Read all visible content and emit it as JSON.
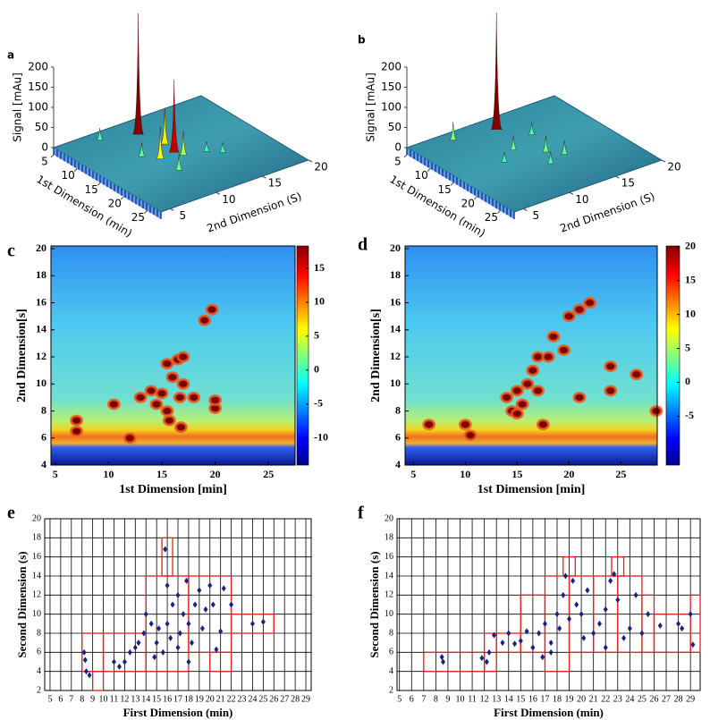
{
  "chart_data": [
    {
      "type": "surface3d",
      "panel": "a",
      "zlabel": "Signal [mAu]",
      "xlabel": "1st Dimension (min)",
      "ylabel": "2nd Dimension (S)",
      "xlim": [
        5,
        28
      ],
      "ylim": [
        4,
        20
      ],
      "zlim": [
        0,
        200
      ],
      "xticks": [
        5,
        10,
        15,
        20,
        25
      ],
      "yticks": [
        5,
        10,
        15,
        20
      ],
      "zticks": [
        0,
        50,
        100,
        150,
        200
      ],
      "x": [
        8.7,
        15.6,
        13,
        16,
        17,
        7,
        20,
        14,
        18,
        19.5
      ],
      "y": [
        11.3,
        11.7,
        12,
        10,
        12,
        8,
        10,
        9,
        14,
        15
      ],
      "z": [
        300,
        180,
        90,
        80,
        60,
        30,
        40,
        35,
        25,
        25
      ]
    },
    {
      "type": "surface3d",
      "panel": "b",
      "zlabel": "Signal [mAu]",
      "xlabel": "1st Dimension (min)",
      "ylabel": "2nd Dimension (S)",
      "xlim": [
        5,
        28
      ],
      "ylim": [
        4,
        20
      ],
      "zlim": [
        0,
        200
      ],
      "xticks": [
        5,
        10,
        15,
        20,
        25
      ],
      "yticks": [
        5,
        10,
        15,
        20
      ],
      "zticks": [
        0,
        50,
        100,
        150,
        200
      ],
      "x": [
        8,
        7,
        14,
        17,
        19,
        20,
        16,
        12
      ],
      "y": [
        12.2,
        8,
        11,
        13,
        14,
        12,
        9,
        14
      ],
      "z": [
        290,
        45,
        35,
        40,
        35,
        30,
        25,
        30
      ]
    },
    {
      "type": "heatmap",
      "panel": "c",
      "xlabel": "1st Dimension [min]",
      "ylabel": "2nd Dimension[s]",
      "xlim": [
        4.6,
        27.5
      ],
      "ylim": [
        4,
        20.2
      ],
      "xticks": [
        5,
        10,
        15,
        20,
        25
      ],
      "yticks": [
        4,
        6,
        8,
        10,
        12,
        14,
        16,
        18,
        20
      ],
      "colorbar_lim": [
        -14,
        18.3
      ],
      "colorbar_ticks": [
        -10,
        -5,
        0,
        5,
        10,
        15
      ],
      "x": [
        7,
        7,
        12,
        13,
        14,
        15,
        14.5,
        15.5,
        15.5,
        16,
        16.5,
        17,
        15.7,
        16.8,
        17,
        18,
        19.7,
        19,
        20,
        20,
        16.7,
        10.5
      ],
      "y": [
        6.5,
        7.3,
        6,
        9,
        9.5,
        9.3,
        8.5,
        8,
        11.5,
        10.5,
        11.8,
        12,
        7.3,
        6.8,
        10,
        9,
        15.5,
        14.7,
        8.2,
        8.8,
        9,
        8.5
      ]
    },
    {
      "type": "heatmap",
      "panel": "d",
      "xlabel": "1st Dimension [min]",
      "ylabel": "2nd Dimension[s]",
      "xlim": [
        4.2,
        28.5
      ],
      "ylim": [
        4,
        20.2
      ],
      "xticks": [
        5,
        10,
        15,
        20,
        25
      ],
      "yticks": [
        4,
        6,
        8,
        10,
        12,
        14,
        16,
        18,
        20
      ],
      "colorbar_lim": [
        -12.2,
        20.1
      ],
      "colorbar_ticks": [
        -5,
        0,
        5,
        10,
        15,
        20
      ],
      "x": [
        6.5,
        10.5,
        10,
        14,
        14.5,
        15,
        15.5,
        15,
        16,
        16.5,
        17,
        18,
        18.5,
        17.5,
        20,
        21,
        22,
        21,
        24,
        26.5,
        24,
        28.4,
        19.5,
        17
      ],
      "y": [
        7,
        6.2,
        7,
        9,
        8,
        9.5,
        8.5,
        7.8,
        10,
        11,
        12,
        12,
        13.5,
        7,
        15,
        15.5,
        16,
        9,
        11.3,
        10.7,
        9.5,
        8,
        12.5,
        9.5
      ]
    },
    {
      "type": "scatter",
      "panel": "e",
      "xlabel": "First Dimension (min)",
      "ylabel": "Second Dimension (s)",
      "xlim": [
        4.5,
        29.5
      ],
      "ylim": [
        2,
        20
      ],
      "grid": true,
      "xticks": [
        5,
        6,
        7,
        8,
        9,
        10,
        11,
        12,
        13,
        14,
        15,
        16,
        17,
        18,
        19,
        20,
        21,
        22,
        23,
        24,
        25,
        26,
        27,
        28,
        29
      ],
      "yticks": [
        2,
        4,
        6,
        8,
        10,
        12,
        14,
        16,
        18,
        20
      ],
      "boxes": [
        [
          8,
          10,
          4,
          8
        ],
        [
          9,
          10,
          2,
          4
        ],
        [
          10,
          14,
          4,
          8
        ],
        [
          14,
          18,
          4,
          14
        ],
        [
          15.5,
          16.5,
          14,
          18
        ],
        [
          18,
          22,
          6,
          14
        ],
        [
          20,
          22,
          4,
          6
        ],
        [
          22,
          26,
          8,
          10
        ]
      ],
      "x": [
        8.2,
        8.3,
        8.4,
        8.7,
        11,
        11.5,
        12,
        12.5,
        13,
        13.3,
        13.8,
        14,
        14.5,
        15,
        15.2,
        15.6,
        15.8,
        16,
        16.3,
        16.5,
        17,
        17.2,
        17.5,
        17.8,
        18,
        18.3,
        18.6,
        19,
        19.3,
        19.6,
        20,
        20.3,
        20.6,
        21,
        21.3,
        22,
        24,
        25,
        17,
        18,
        14.8,
        16
      ],
      "values": [
        6,
        5.2,
        4,
        3.6,
        5,
        4.5,
        5,
        6,
        6.5,
        7,
        8,
        10,
        9,
        7,
        8.5,
        6,
        16.8,
        9,
        7.5,
        11,
        12,
        8,
        10,
        13.5,
        9,
        7,
        11,
        12.5,
        8.5,
        10.5,
        13,
        11,
        6.3,
        8.2,
        12.7,
        11,
        9,
        9.2,
        6.5,
        5,
        5.5,
        13
      ]
    },
    {
      "type": "scatter",
      "panel": "f",
      "xlabel": "First Dimension (min)",
      "ylabel": "Second  Dimension (s)",
      "xlim": [
        4.8,
        29.8
      ],
      "ylim": [
        2,
        20
      ],
      "grid": true,
      "xticks": [
        5,
        6,
        7,
        8,
        9,
        10,
        11,
        12,
        13,
        14,
        15,
        16,
        17,
        18,
        19,
        20,
        21,
        22,
        23,
        24,
        25,
        26,
        27,
        28,
        29
      ],
      "yticks": [
        2,
        4,
        6,
        8,
        10,
        12,
        14,
        16,
        18,
        20
      ],
      "boxes": [
        [
          7,
          12,
          4,
          6
        ],
        [
          12,
          13,
          4,
          8
        ],
        [
          13,
          15,
          6,
          8
        ],
        [
          15,
          17,
          6,
          12
        ],
        [
          17,
          19,
          4,
          14
        ],
        [
          18.5,
          19.5,
          14,
          16
        ],
        [
          19,
          21,
          6,
          14
        ],
        [
          21,
          23,
          6,
          14
        ],
        [
          22.5,
          23.5,
          14,
          16
        ],
        [
          23,
          25,
          6,
          14
        ],
        [
          25,
          26,
          6,
          12
        ],
        [
          26,
          29,
          6,
          10
        ],
        [
          29,
          29.8,
          6,
          12
        ]
      ],
      "x": [
        8.5,
        8.6,
        11.8,
        12.2,
        12.4,
        12.8,
        13.5,
        14,
        14.5,
        15,
        15.5,
        16,
        16.5,
        16.8,
        17,
        17.5,
        18,
        18.2,
        18.5,
        18.7,
        19,
        19.3,
        19.6,
        20,
        20.2,
        20.5,
        21,
        21.5,
        22,
        22.4,
        22.7,
        23,
        23.5,
        24,
        24.5,
        25,
        25.5,
        26.5,
        28,
        28.3,
        29,
        29.2,
        22,
        17.5
      ],
      "values": [
        5.5,
        5,
        5.4,
        5,
        6,
        7.8,
        7,
        8,
        6.9,
        7.2,
        8.2,
        6.5,
        8,
        5.5,
        9,
        7,
        10,
        8.5,
        12,
        14,
        9.5,
        13.5,
        11,
        10,
        7.5,
        12.5,
        8,
        9,
        10.5,
        13.5,
        14.2,
        11.5,
        7.5,
        8.5,
        12,
        8,
        10,
        8.8,
        9,
        8.5,
        10,
        6.8,
        6.5,
        6
      ]
    }
  ]
}
